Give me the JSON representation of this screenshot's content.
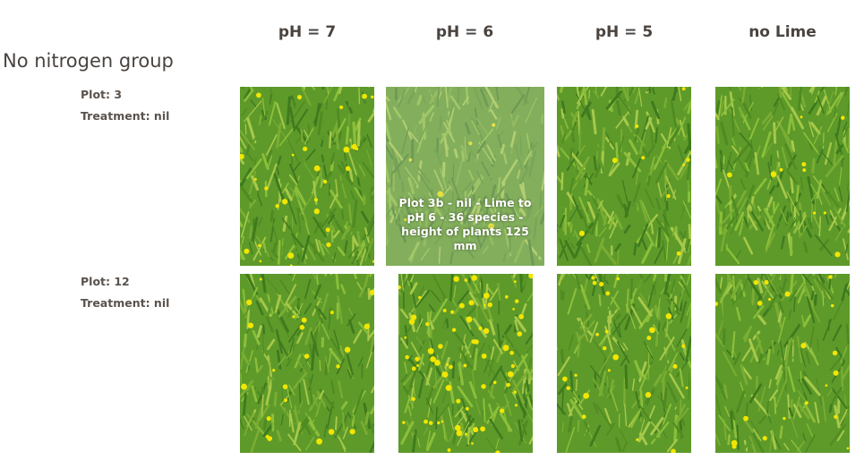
{
  "columns": [
    "pH = 7",
    "pH = 6",
    "pH = 5",
    "no Lime"
  ],
  "group_title": "No nitrogen group",
  "rows": [
    {
      "plot": "Plot: 3",
      "treatment": "Treatment: nil"
    },
    {
      "plot": "Plot: 12",
      "treatment": "Treatment: nil"
    }
  ],
  "hover_caption": "Plot 3b - nil - Lime to pH 6 - 36 species - height of plants 125 mm",
  "colors": {
    "grass_dark": "#3f7a1e",
    "grass_mid": "#5e9a2a",
    "grass_light": "#8cbf3a",
    "flower_yellow": "#f2e600"
  }
}
